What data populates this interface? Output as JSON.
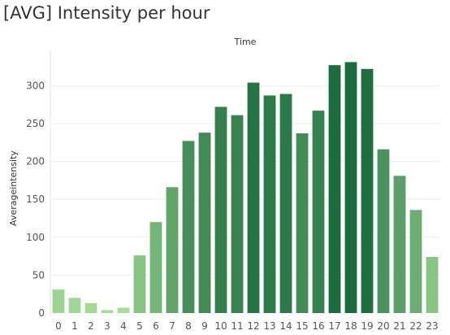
{
  "title": "[AVG] Intensity per hour",
  "chart_data": {
    "type": "bar",
    "title": "[AVG] Intensity per hour",
    "xlabel": "Time",
    "ylabel": "Averageintensity",
    "ylim": [
      0,
      340
    ],
    "yticks": [
      0,
      50,
      100,
      150,
      200,
      250,
      300
    ],
    "grid": true,
    "x_axis_position": "top-title-bottom-ticks",
    "categories": [
      "0",
      "1",
      "2",
      "3",
      "4",
      "5",
      "6",
      "7",
      "8",
      "9",
      "10",
      "11",
      "12",
      "13",
      "14",
      "15",
      "16",
      "17",
      "18",
      "19",
      "20",
      "21",
      "22",
      "23"
    ],
    "values": [
      31,
      20,
      13,
      4,
      7,
      76,
      120,
      166,
      227,
      238,
      272,
      261,
      304,
      287,
      289,
      237,
      267,
      327,
      331,
      322,
      216,
      181,
      136,
      74
    ],
    "color_scale": {
      "low": "#a6dd98",
      "high": "#1a6b3d"
    }
  }
}
